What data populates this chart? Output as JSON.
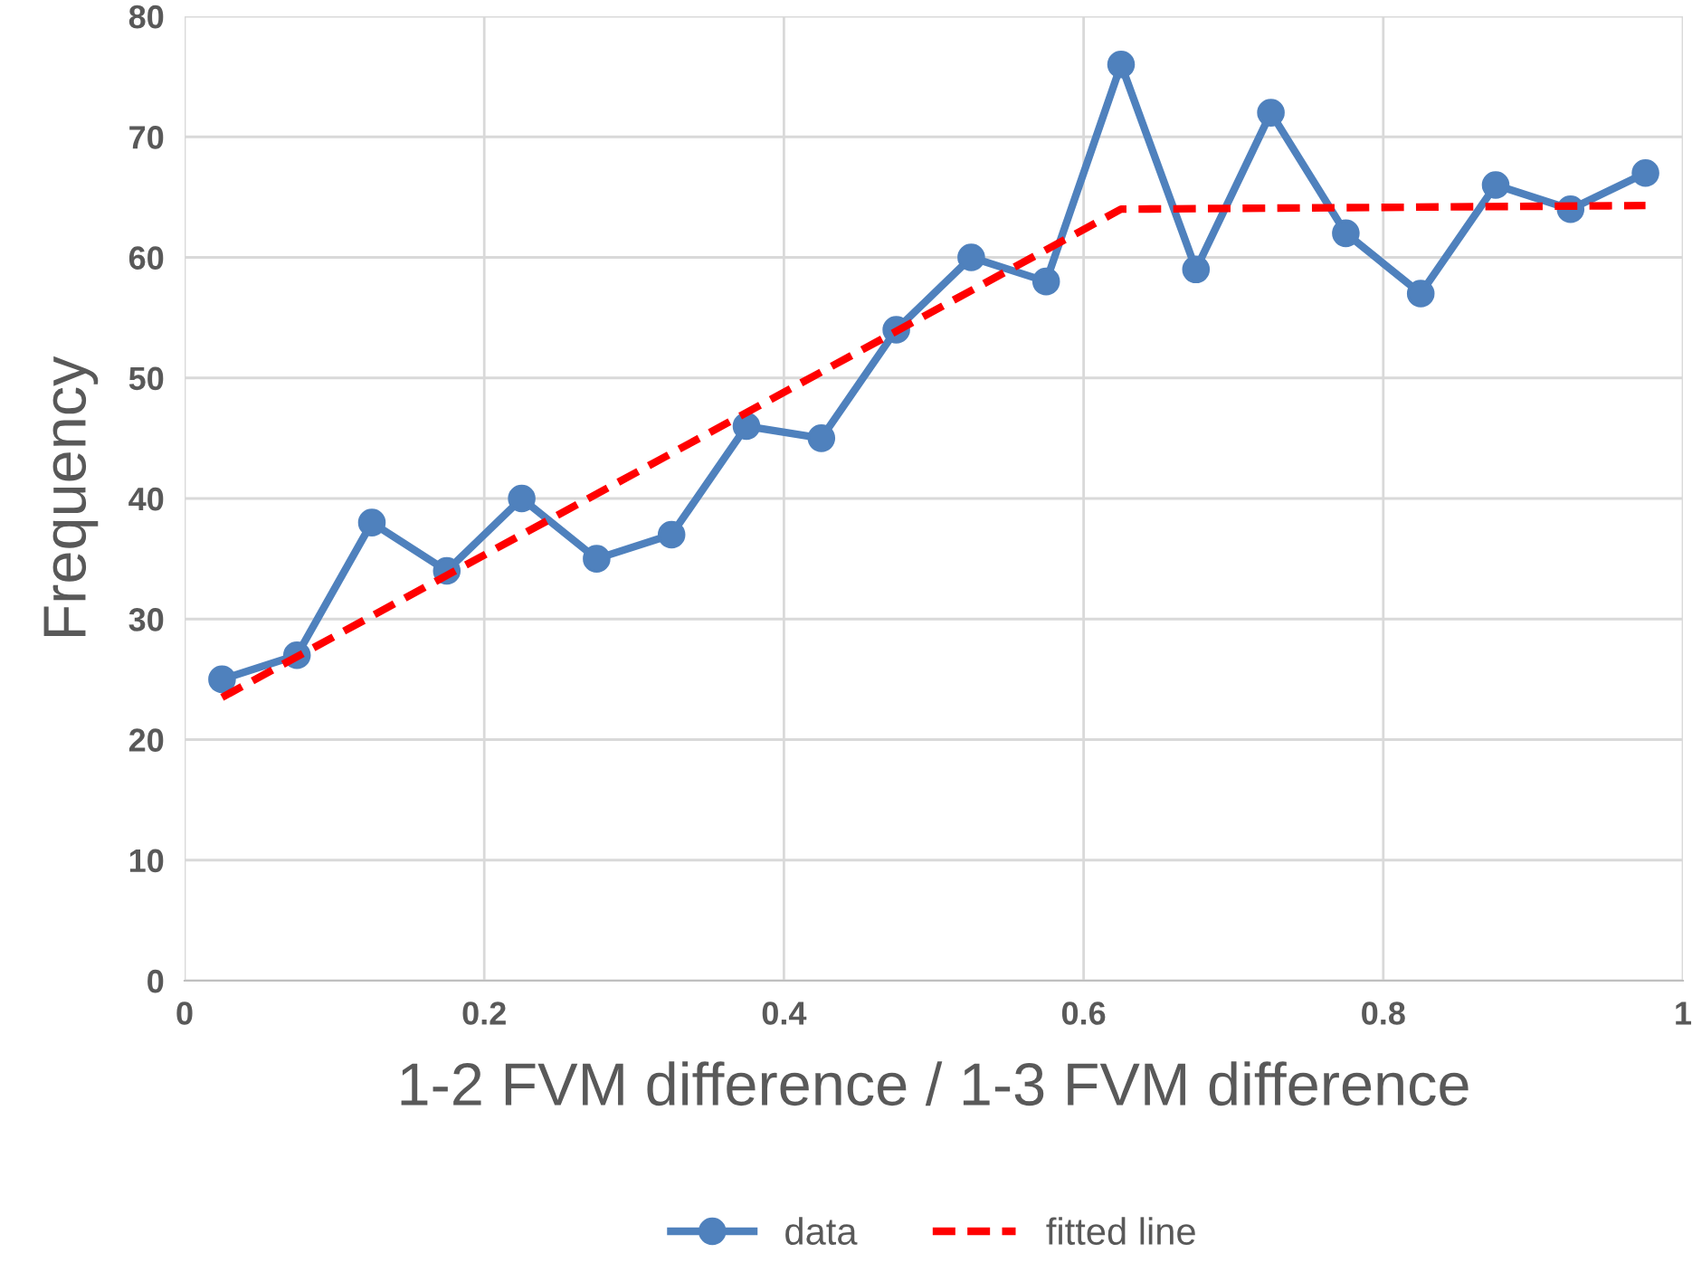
{
  "chart_data": {
    "type": "line",
    "xlabel": "1-2 FVM difference / 1-3 FVM difference",
    "ylabel": "Frequency",
    "xlim": [
      0,
      1
    ],
    "ylim": [
      0,
      80
    ],
    "xticks": [
      0,
      0.2,
      0.4,
      0.6,
      0.8,
      1
    ],
    "yticks": [
      0,
      10,
      20,
      30,
      40,
      50,
      60,
      70,
      80
    ],
    "grid": true,
    "legend": "bottom",
    "series": [
      {
        "name": "data",
        "color": "#4f81bd",
        "marker": "circle",
        "line_style": "solid",
        "x": [
          0.025,
          0.075,
          0.125,
          0.175,
          0.225,
          0.275,
          0.325,
          0.375,
          0.425,
          0.475,
          0.525,
          0.575,
          0.625,
          0.675,
          0.725,
          0.775,
          0.825,
          0.875,
          0.925,
          0.975
        ],
        "values": [
          25,
          27,
          38,
          34,
          40,
          35,
          37,
          46,
          45,
          54,
          60,
          58,
          76,
          59,
          72,
          62,
          57,
          66,
          64,
          67
        ]
      },
      {
        "name": "fitted line",
        "color": "#ff0000",
        "marker": "none",
        "line_style": "dashed",
        "x": [
          0.025,
          0.625,
          0.975
        ],
        "values": [
          23.5,
          64,
          64.3
        ]
      }
    ]
  }
}
